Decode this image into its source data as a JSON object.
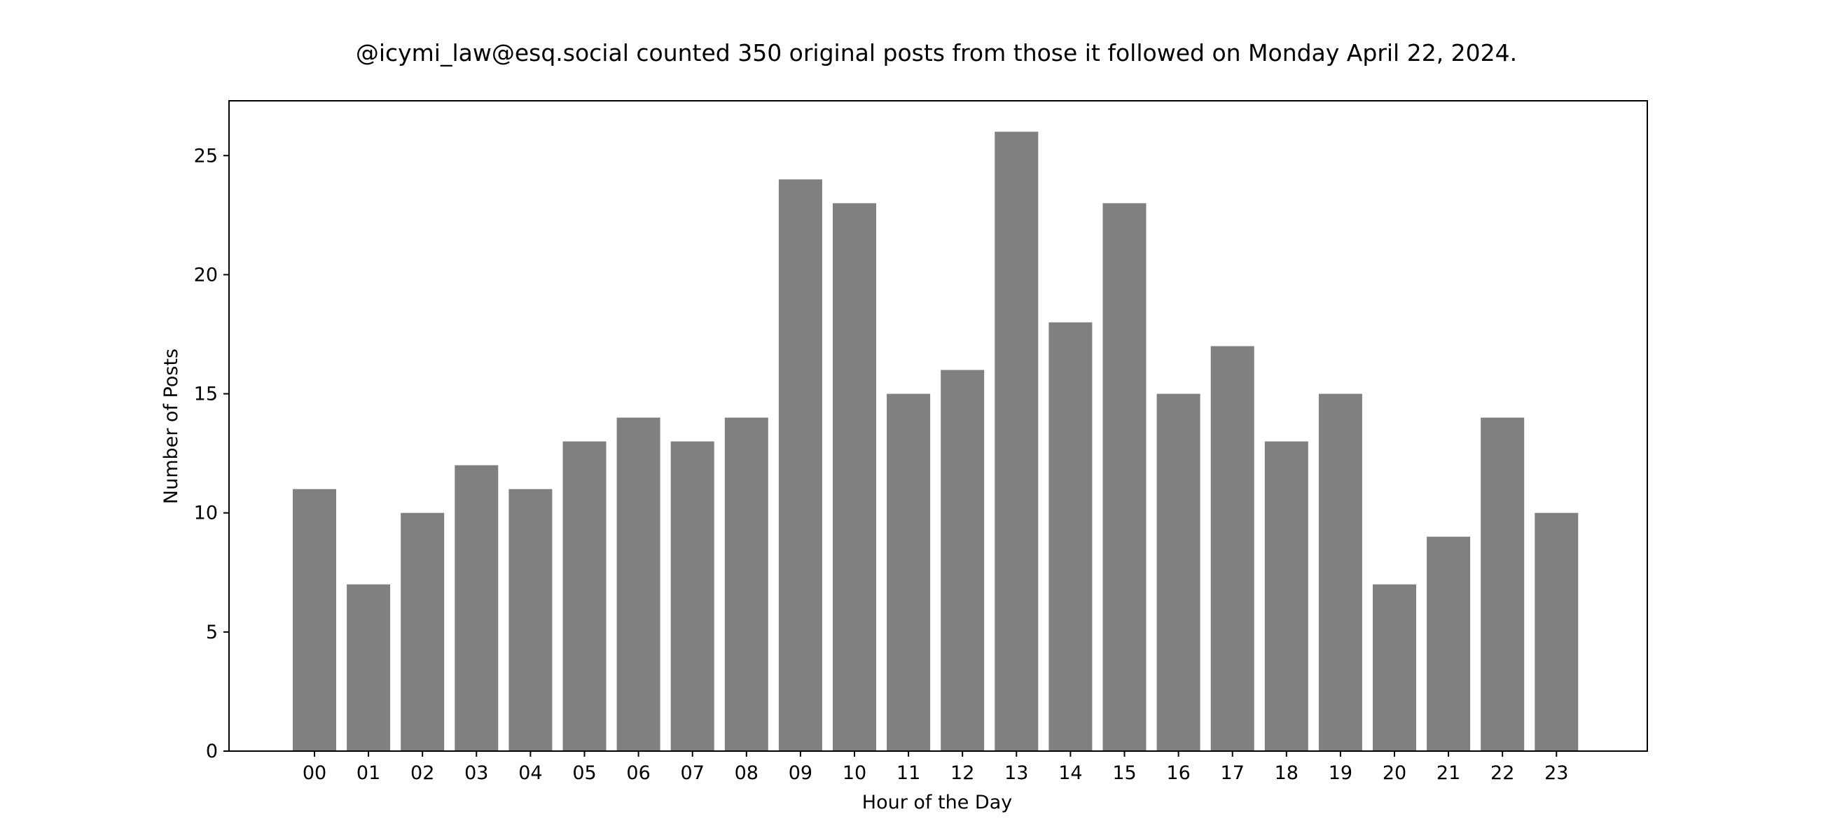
{
  "chart_data": {
    "type": "bar",
    "title": "@icymi_law@esq.social counted 350 original posts from those it followed on Monday April 22, 2024.",
    "xlabel": "Hour of the Day",
    "ylabel": "Number of Posts",
    "categories": [
      "00",
      "01",
      "02",
      "03",
      "04",
      "05",
      "06",
      "07",
      "08",
      "09",
      "10",
      "11",
      "12",
      "13",
      "14",
      "15",
      "16",
      "17",
      "18",
      "19",
      "20",
      "21",
      "22",
      "23"
    ],
    "values": [
      11,
      7,
      10,
      12,
      11,
      13,
      14,
      13,
      14,
      24,
      23,
      15,
      16,
      26,
      18,
      23,
      15,
      17,
      13,
      15,
      7,
      9,
      14,
      10
    ],
    "ylim": [
      0,
      27.3
    ],
    "yticks": [
      "0",
      "5",
      "10",
      "15",
      "20",
      "25"
    ],
    "grid": false,
    "bar_color": "#808080"
  }
}
